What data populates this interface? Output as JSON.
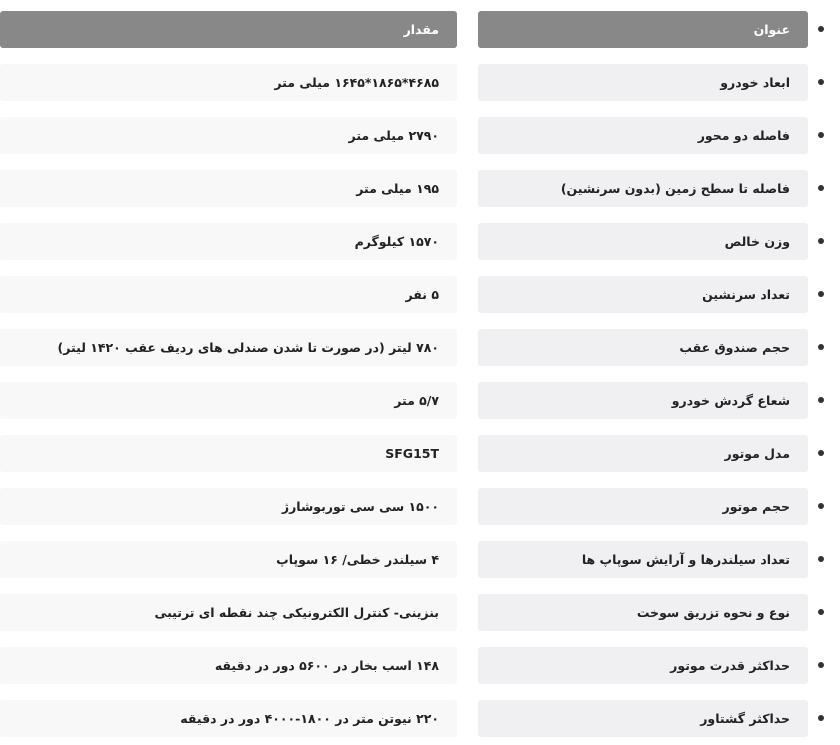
{
  "header": {
    "title": "عنوان",
    "value": "مقدار"
  },
  "colors": {
    "header_bg": "#888888",
    "title_bg": "#f0f0f2",
    "value_bg": "#f8f8f9"
  },
  "rows": [
    {
      "title": "ابعاد خودرو",
      "value": "۴۶۸۵*۱۸۶۵*۱۶۴۵ میلی متر"
    },
    {
      "title": "فاصله دو محور",
      "value": "۲۷۹۰ میلی متر"
    },
    {
      "title": "فاصله تا سطح زمین (بدون سرنشین)",
      "value": "۱۹۵ میلی متر"
    },
    {
      "title": "وزن خالص",
      "value": "۱۵۷۰ کیلوگرم"
    },
    {
      "title": "تعداد سرنشین",
      "value": "۵ نفر"
    },
    {
      "title": "حجم صندوق عقب",
      "value": "۷۸۰ لیتر (در صورت تا شدن صندلی های ردیف عقب ۱۴۲۰ لیتر)"
    },
    {
      "title": "شعاع گردش خودرو",
      "value": "۵/۷ متر"
    },
    {
      "title": "مدل موتور",
      "value": "SFG15T"
    },
    {
      "title": "حجم موتور",
      "value": "۱۵۰۰ سی سی توربوشارژ"
    },
    {
      "title": "تعداد سیلندرها و آرایش سوپاپ ها",
      "value": "۴ سیلندر خطی/ ۱۶ سوپاپ"
    },
    {
      "title": "نوع و نحوه تزریق سوخت",
      "value": "بنزینی- کنترل الکترونیکی چند نقطه ای ترتیبی"
    },
    {
      "title": "حداکثر قدرت موتور",
      "value": "۱۴۸ اسب بخار در ۵۶۰۰ دور در دقیقه"
    },
    {
      "title": "حداکثر گشتاور",
      "value": "۲۲۰ نیوتن متر در ۱۸۰۰-۴۰۰۰ دور در دقیقه"
    }
  ]
}
